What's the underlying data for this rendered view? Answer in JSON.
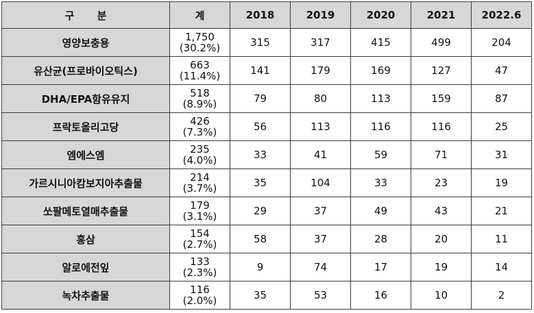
{
  "table": {
    "headers": [
      "구 분",
      "계",
      "2018",
      "2019",
      "2020",
      "2021",
      "2022.6"
    ],
    "rows": [
      {
        "label": "영양보충용",
        "total": "1,750",
        "share": "(30.2%)",
        "values": [
          "315",
          "317",
          "415",
          "499",
          "204"
        ]
      },
      {
        "label": "유산균(프로바이오틱스)",
        "total": "663",
        "share": "(11.4%)",
        "values": [
          "141",
          "179",
          "169",
          "127",
          "47"
        ]
      },
      {
        "label": "DHA/EPA함유유지",
        "total": "518",
        "share": "(8.9%)",
        "values": [
          "79",
          "80",
          "113",
          "159",
          "87"
        ]
      },
      {
        "label": "프락토올리고당",
        "total": "426",
        "share": "(7.3%)",
        "values": [
          "56",
          "113",
          "116",
          "116",
          "25"
        ]
      },
      {
        "label": "엠에스엠",
        "total": "235",
        "share": "(4.0%)",
        "values": [
          "33",
          "41",
          "59",
          "71",
          "31"
        ]
      },
      {
        "label": "가르시니아캄보지아추출물",
        "total": "214",
        "share": "(3.7%)",
        "values": [
          "35",
          "104",
          "33",
          "23",
          "19"
        ]
      },
      {
        "label": "쏘팔메토열매추출물",
        "total": "179",
        "share": "(3.1%)",
        "values": [
          "29",
          "37",
          "49",
          "43",
          "21"
        ]
      },
      {
        "label": "홍삼",
        "total": "154",
        "share": "(2.7%)",
        "values": [
          "58",
          "37",
          "28",
          "20",
          "11"
        ]
      },
      {
        "label": "알로에전잎",
        "total": "133",
        "share": "(2.3%)",
        "values": [
          "9",
          "74",
          "17",
          "19",
          "14"
        ]
      },
      {
        "label": "녹차추출물",
        "total": "116",
        "share": "(2.0%)",
        "values": [
          "35",
          "53",
          "16",
          "10",
          "2"
        ]
      }
    ]
  },
  "colors": {
    "header_bg": "#d7d7d7",
    "label_bg": "#d7d7d7",
    "border": "#3a3a3a"
  }
}
